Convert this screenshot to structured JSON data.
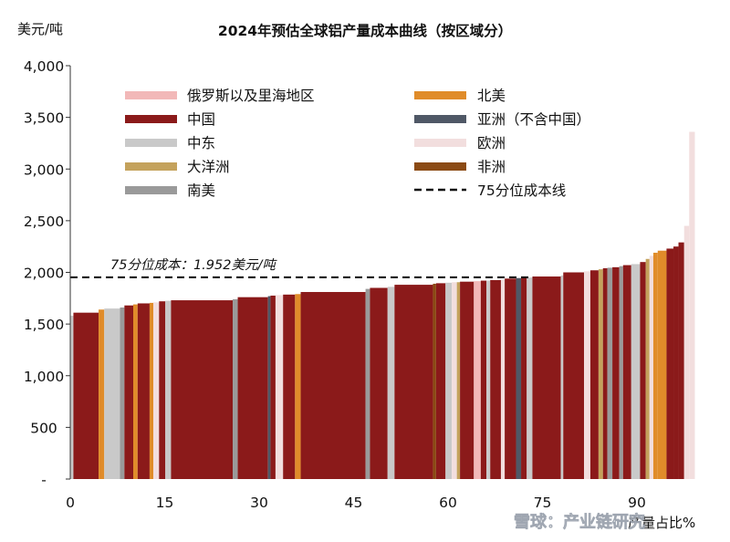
{
  "chart_data": {
    "type": "bar",
    "title": "2024年预估全球铝产量成本曲线（按区域分）",
    "ylabel": "美元/吨",
    "xlabel": "产量占比%",
    "ylim": [
      0,
      4000
    ],
    "xlim": [
      0,
      100
    ],
    "yticks": [
      "-",
      "500",
      "1,000",
      "1,500",
      "2,000",
      "2,500",
      "3,000",
      "3,500",
      "4,000"
    ],
    "xticks": [
      "0",
      "15",
      "30",
      "45",
      "60",
      "75",
      "90"
    ],
    "grid": false,
    "legend_placement": "top, two columns",
    "legend": [
      {
        "key": "russia",
        "label": "俄罗斯以及里海地区"
      },
      {
        "key": "china",
        "label": "中国"
      },
      {
        "key": "mideast",
        "label": "中东"
      },
      {
        "key": "oceania",
        "label": "大洋洲"
      },
      {
        "key": "samerica",
        "label": "南美"
      },
      {
        "key": "namerica",
        "label": "北美"
      },
      {
        "key": "asia",
        "label": "亚洲（不含中国）"
      },
      {
        "key": "europe",
        "label": "欧洲"
      },
      {
        "key": "africa",
        "label": "非洲"
      },
      {
        "key": "p75",
        "label": "75分位成本线"
      }
    ],
    "region_colors": {
      "russia": "#f2b8b8",
      "china": "#8b1a1a",
      "mideast": "#c9c9c9",
      "oceania": "#c4a25c",
      "samerica": "#9a9a9a",
      "namerica": "#e08c2a",
      "asia": "#4f5866",
      "europe": "#f2dede",
      "africa": "#8b4a14"
    },
    "percentile_line": {
      "value": 1952,
      "label": "75分位成本：1.952美元/吨"
    },
    "bars": [
      {
        "x0": 0.0,
        "x1": 0.5,
        "value": 1580,
        "region": "mideast"
      },
      {
        "x0": 0.5,
        "x1": 4.5,
        "value": 1610,
        "region": "china"
      },
      {
        "x0": 4.5,
        "x1": 5.4,
        "value": 1640,
        "region": "namerica"
      },
      {
        "x0": 5.4,
        "x1": 7.9,
        "value": 1650,
        "region": "mideast"
      },
      {
        "x0": 7.9,
        "x1": 8.6,
        "value": 1660,
        "region": "samerica"
      },
      {
        "x0": 8.6,
        "x1": 10.0,
        "value": 1680,
        "region": "china"
      },
      {
        "x0": 10.0,
        "x1": 10.7,
        "value": 1690,
        "region": "namerica"
      },
      {
        "x0": 10.7,
        "x1": 12.6,
        "value": 1700,
        "region": "china"
      },
      {
        "x0": 12.6,
        "x1": 13.2,
        "value": 1705,
        "region": "namerica"
      },
      {
        "x0": 13.2,
        "x1": 14.1,
        "value": 1710,
        "region": "europe"
      },
      {
        "x0": 14.1,
        "x1": 15.1,
        "value": 1720,
        "region": "china"
      },
      {
        "x0": 15.1,
        "x1": 16.0,
        "value": 1725,
        "region": "mideast"
      },
      {
        "x0": 16.0,
        "x1": 25.8,
        "value": 1730,
        "region": "china"
      },
      {
        "x0": 25.8,
        "x1": 26.6,
        "value": 1740,
        "region": "samerica"
      },
      {
        "x0": 26.6,
        "x1": 31.4,
        "value": 1760,
        "region": "china"
      },
      {
        "x0": 31.4,
        "x1": 31.8,
        "value": 1770,
        "region": "asia"
      },
      {
        "x0": 31.8,
        "x1": 32.6,
        "value": 1775,
        "region": "china"
      },
      {
        "x0": 32.6,
        "x1": 33.8,
        "value": 1780,
        "region": "europe"
      },
      {
        "x0": 33.8,
        "x1": 35.7,
        "value": 1785,
        "region": "china"
      },
      {
        "x0": 35.7,
        "x1": 36.6,
        "value": 1790,
        "region": "namerica"
      },
      {
        "x0": 36.6,
        "x1": 46.9,
        "value": 1810,
        "region": "china"
      },
      {
        "x0": 46.9,
        "x1": 47.6,
        "value": 1840,
        "region": "samerica"
      },
      {
        "x0": 47.6,
        "x1": 50.4,
        "value": 1850,
        "region": "china"
      },
      {
        "x0": 50.4,
        "x1": 51.5,
        "value": 1860,
        "region": "mideast"
      },
      {
        "x0": 51.5,
        "x1": 57.6,
        "value": 1880,
        "region": "china"
      },
      {
        "x0": 57.6,
        "x1": 58.1,
        "value": 1890,
        "region": "africa"
      },
      {
        "x0": 58.1,
        "x1": 59.6,
        "value": 1895,
        "region": "china"
      },
      {
        "x0": 59.6,
        "x1": 60.6,
        "value": 1900,
        "region": "mideast"
      },
      {
        "x0": 60.6,
        "x1": 61.4,
        "value": 1905,
        "region": "europe"
      },
      {
        "x0": 61.4,
        "x1": 61.9,
        "value": 1905,
        "region": "oceania"
      },
      {
        "x0": 61.9,
        "x1": 64.1,
        "value": 1910,
        "region": "china"
      },
      {
        "x0": 64.1,
        "x1": 65.2,
        "value": 1915,
        "region": "russia"
      },
      {
        "x0": 65.2,
        "x1": 66.1,
        "value": 1920,
        "region": "china"
      },
      {
        "x0": 66.1,
        "x1": 66.7,
        "value": 1920,
        "region": "mideast"
      },
      {
        "x0": 66.7,
        "x1": 68.4,
        "value": 1925,
        "region": "china"
      },
      {
        "x0": 68.4,
        "x1": 69.0,
        "value": 1930,
        "region": "europe"
      },
      {
        "x0": 69.0,
        "x1": 70.8,
        "value": 1940,
        "region": "china"
      },
      {
        "x0": 70.8,
        "x1": 71.6,
        "value": 1945,
        "region": "asia"
      },
      {
        "x0": 71.6,
        "x1": 72.5,
        "value": 1950,
        "region": "china"
      },
      {
        "x0": 72.5,
        "x1": 73.4,
        "value": 1950,
        "region": "mideast"
      },
      {
        "x0": 73.4,
        "x1": 77.9,
        "value": 1960,
        "region": "china"
      },
      {
        "x0": 77.9,
        "x1": 78.3,
        "value": 1970,
        "region": "mideast"
      },
      {
        "x0": 78.3,
        "x1": 81.6,
        "value": 2000,
        "region": "china"
      },
      {
        "x0": 81.6,
        "x1": 82.6,
        "value": 2010,
        "region": "europe"
      },
      {
        "x0": 82.6,
        "x1": 83.9,
        "value": 2020,
        "region": "china"
      },
      {
        "x0": 83.9,
        "x1": 84.6,
        "value": 2030,
        "region": "oceania"
      },
      {
        "x0": 84.6,
        "x1": 85.3,
        "value": 2040,
        "region": "china"
      },
      {
        "x0": 85.3,
        "x1": 86.1,
        "value": 2045,
        "region": "samerica"
      },
      {
        "x0": 86.1,
        "x1": 87.2,
        "value": 2050,
        "region": "china"
      },
      {
        "x0": 87.2,
        "x1": 87.8,
        "value": 2060,
        "region": "samerica"
      },
      {
        "x0": 87.8,
        "x1": 89.1,
        "value": 2070,
        "region": "china"
      },
      {
        "x0": 89.1,
        "x1": 90.5,
        "value": 2080,
        "region": "mideast"
      },
      {
        "x0": 90.5,
        "x1": 91.4,
        "value": 2100,
        "region": "china"
      },
      {
        "x0": 91.4,
        "x1": 92.0,
        "value": 2130,
        "region": "oceania"
      },
      {
        "x0": 92.0,
        "x1": 92.6,
        "value": 2160,
        "region": "europe"
      },
      {
        "x0": 92.6,
        "x1": 93.3,
        "value": 2190,
        "region": "namerica"
      },
      {
        "x0": 93.3,
        "x1": 94.7,
        "value": 2210,
        "region": "namerica"
      },
      {
        "x0": 94.7,
        "x1": 95.8,
        "value": 2230,
        "region": "china"
      },
      {
        "x0": 95.8,
        "x1": 96.6,
        "value": 2250,
        "region": "china"
      },
      {
        "x0": 96.6,
        "x1": 97.5,
        "value": 2290,
        "region": "china"
      },
      {
        "x0": 97.5,
        "x1": 98.3,
        "value": 2450,
        "region": "europe"
      },
      {
        "x0": 98.3,
        "x1": 99.2,
        "value": 3360,
        "region": "europe"
      }
    ]
  },
  "watermark": "雪球：产业链研究"
}
